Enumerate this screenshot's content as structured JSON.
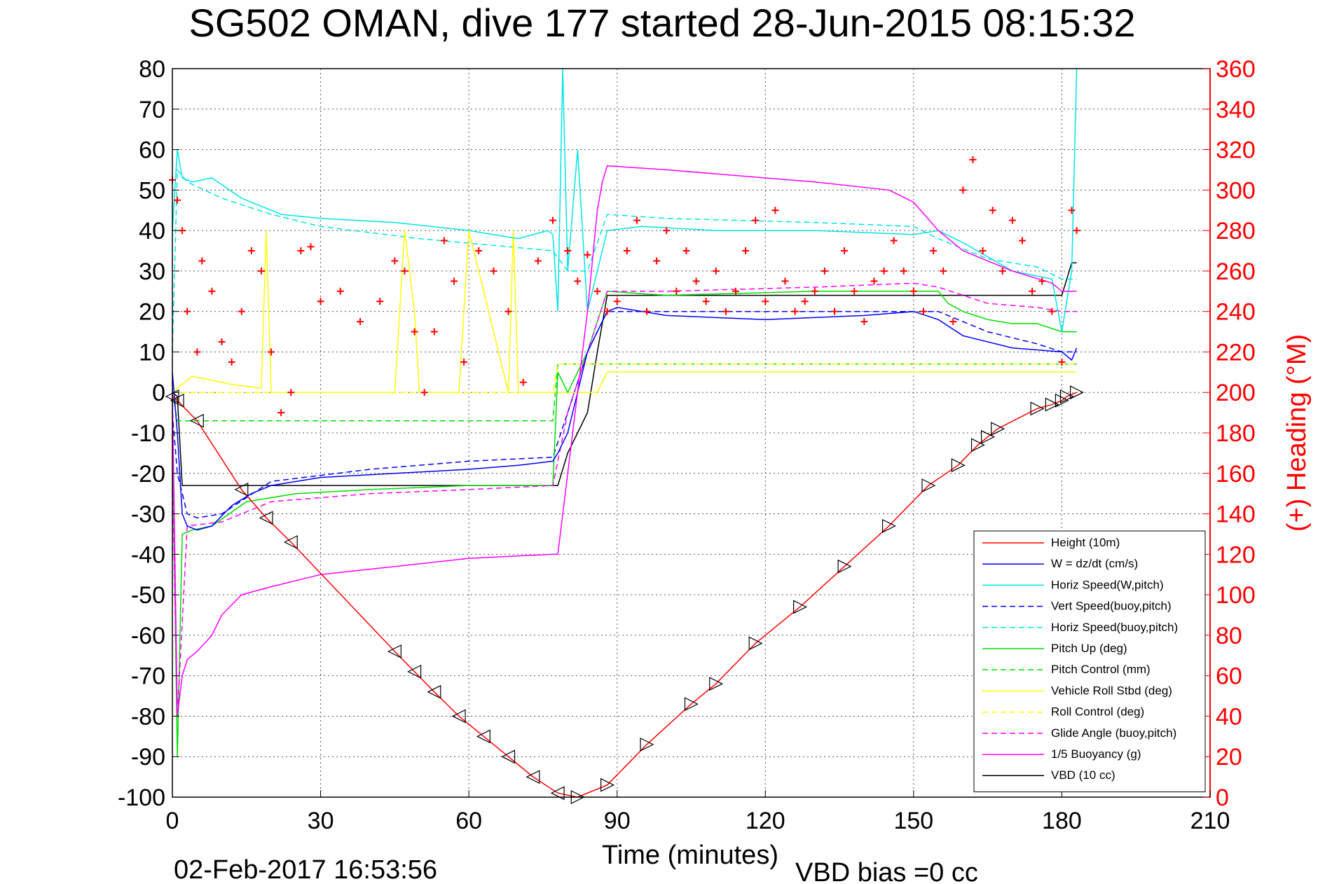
{
  "chart_data": {
    "type": "line",
    "title": "SG502 OMAN, dive 177 started 28-Jun-2015 08:15:32",
    "xlabel": "Time (minutes)",
    "ylabel_right": "(+) Heading (°M)",
    "xlim": [
      0,
      210
    ],
    "ylim": [
      -100,
      80
    ],
    "ylim_right": [
      0,
      360
    ],
    "grid": true,
    "legend_position": "bottom-right",
    "footer_date": "02-Feb-2017 16:53:56",
    "footer_note": "VBD bias =0 cc",
    "xticks": [
      "0",
      "30",
      "60",
      "90",
      "120",
      "150",
      "180",
      "210"
    ],
    "yticks_left": [
      "80",
      "70",
      "60",
      "50",
      "40",
      "30",
      "20",
      "10",
      "0",
      "-10",
      "-20",
      "-30",
      "-40",
      "-50",
      "-60",
      "-70",
      "-80",
      "-90",
      "-100"
    ],
    "yticks_right": [
      "360",
      "340",
      "320",
      "300",
      "280",
      "260",
      "240",
      "220",
      "200",
      "180",
      "160",
      "140",
      "120",
      "100",
      "80",
      "60",
      "40",
      "20",
      "0"
    ],
    "series": [
      {
        "name": "Height (10m)",
        "color": "#ff0000",
        "style": "solid",
        "x": [
          0,
          1,
          5,
          14,
          19,
          24,
          45,
          49,
          53,
          58,
          63,
          68,
          73,
          78,
          82,
          88,
          96,
          105,
          110,
          118,
          127,
          136,
          145,
          153,
          159,
          163,
          165,
          167,
          175,
          178,
          180,
          181,
          183
        ],
        "y": [
          -1,
          -2,
          -7,
          -24,
          -31,
          -37,
          -64,
          -69,
          -74,
          -80,
          -85,
          -90,
          -95,
          -99,
          -100,
          -97,
          -87,
          -77,
          -72,
          -62,
          -53,
          -43,
          -33,
          -23,
          -18,
          -13,
          -11,
          -9,
          -4,
          -3,
          -2,
          -1,
          0
        ]
      },
      {
        "name": "W = dz/dt (cm/s)",
        "color": "#0000ff",
        "style": "solid",
        "x": [
          0,
          1,
          2,
          3,
          5,
          8,
          12,
          16,
          20,
          30,
          45,
          60,
          70,
          77,
          78,
          80,
          84,
          88,
          90,
          100,
          120,
          140,
          150,
          155,
          160,
          170,
          180,
          182,
          183
        ],
        "y": [
          5,
          -10,
          -30,
          -33,
          -34,
          -33,
          -28,
          -25,
          -23,
          -21,
          -20,
          -19,
          -18,
          -17,
          -15,
          -10,
          10,
          20,
          21,
          19,
          18,
          19,
          20,
          18,
          14,
          11,
          10,
          8,
          11
        ]
      },
      {
        "name": "Horiz Speed(W,pitch)",
        "color": "#00e5e5",
        "style": "solid",
        "x": [
          0,
          1,
          2,
          4,
          8,
          14,
          22,
          30,
          45,
          60,
          70,
          76,
          77,
          78,
          79,
          80,
          82,
          84,
          86,
          88,
          95,
          110,
          130,
          150,
          155,
          160,
          170,
          178,
          180,
          182,
          183
        ],
        "y": [
          40,
          60,
          53,
          52,
          53,
          48,
          44,
          43,
          42,
          40,
          38,
          40,
          39,
          20,
          80,
          30,
          60,
          20,
          30,
          40,
          41,
          40,
          40,
          39,
          40,
          37,
          30,
          28,
          15,
          30,
          80
        ]
      },
      {
        "name": "Vert Speed(buoy,pitch)",
        "color": "#0000ff",
        "style": "dashed",
        "x": [
          0,
          1,
          3,
          5,
          10,
          20,
          40,
          60,
          77,
          80,
          84,
          88,
          100,
          130,
          155,
          165,
          175,
          180,
          183
        ],
        "y": [
          -5,
          -20,
          -30,
          -31,
          -30,
          -22,
          -19,
          -17,
          -16,
          -5,
          10,
          20,
          20,
          20,
          20,
          15,
          12,
          10,
          10
        ]
      },
      {
        "name": "Horiz Speed(buoy,pitch)",
        "color": "#00e5e5",
        "style": "dashed",
        "x": [
          0,
          1,
          3,
          10,
          20,
          30,
          50,
          77,
          80,
          84,
          88,
          100,
          130,
          150,
          155,
          165,
          175,
          180,
          183
        ],
        "y": [
          10,
          55,
          52,
          48,
          44,
          41,
          38,
          35,
          30,
          30,
          44,
          43,
          42,
          41,
          38,
          33,
          31,
          28,
          28
        ]
      },
      {
        "name": "Pitch Up (deg)",
        "color": "#00dd00",
        "style": "solid",
        "x": [
          0,
          1,
          2,
          4,
          8,
          15,
          25,
          40,
          60,
          77,
          78,
          80,
          84,
          88,
          100,
          130,
          155,
          157,
          160,
          165,
          170,
          175,
          180,
          183
        ],
        "y": [
          -10,
          -90,
          -35,
          -34,
          -33,
          -27,
          -25,
          -24,
          -23,
          -23,
          5,
          0,
          10,
          25,
          24,
          25,
          25,
          22,
          20,
          18,
          17,
          17,
          15,
          15
        ]
      },
      {
        "name": "Pitch Control (mm)",
        "color": "#00dd00",
        "style": "dashed",
        "x": [
          0,
          1,
          2,
          77,
          78,
          88,
          155,
          178,
          180,
          183
        ],
        "y": [
          0,
          -7,
          -7,
          -7,
          7,
          7,
          7,
          7,
          7,
          7
        ]
      },
      {
        "name": "Vehicle Roll Stbd (deg)",
        "color": "#ffff00",
        "style": "solid",
        "x": [
          0,
          2,
          4,
          8,
          12,
          18,
          19,
          20,
          30,
          45,
          47,
          49,
          50,
          58,
          60,
          68,
          69,
          70,
          76,
          78,
          86,
          88,
          100,
          120,
          140,
          155,
          160,
          175,
          180,
          183
        ],
        "y": [
          0,
          2,
          4,
          3,
          2,
          1,
          40,
          0,
          0,
          0,
          40,
          20,
          0,
          0,
          40,
          0,
          40,
          0,
          0,
          0,
          0,
          5,
          5,
          5,
          5,
          5,
          5,
          5,
          5,
          5
        ]
      },
      {
        "name": "Roll Control (deg)",
        "color": "#ffff00",
        "style": "dashed",
        "x": [
          0,
          1,
          50,
          77,
          78,
          88,
          150,
          155,
          180,
          183
        ],
        "y": [
          0,
          0,
          0,
          0,
          7,
          7,
          7,
          7,
          7,
          7
        ]
      },
      {
        "name": "Glide Angle (buoy,pitch)",
        "color": "#ff00ff",
        "style": "dashed",
        "x": [
          0,
          1,
          3,
          10,
          20,
          40,
          60,
          77,
          80,
          84,
          88,
          100,
          130,
          150,
          155,
          165,
          175,
          180,
          183
        ],
        "y": [
          -20,
          -80,
          -33,
          -32,
          -27,
          -25,
          -24,
          -23,
          -5,
          10,
          25,
          25,
          26,
          27,
          26,
          22,
          21,
          20,
          20
        ]
      },
      {
        "name": "1/5 Buoyancy (g)",
        "color": "#ff00ff",
        "style": "solid",
        "x": [
          0,
          1,
          2,
          3,
          5,
          8,
          10,
          14,
          20,
          30,
          45,
          60,
          77,
          78,
          80,
          84,
          86,
          87,
          88,
          100,
          130,
          145,
          150,
          155,
          160,
          170,
          178,
          180,
          183
        ],
        "y": [
          0,
          -80,
          -70,
          -66,
          -64,
          -60,
          -55,
          -50,
          -48,
          -45,
          -43,
          -41,
          -40,
          -40,
          -20,
          20,
          45,
          52,
          56,
          55,
          52,
          50,
          47,
          40,
          35,
          30,
          27,
          25,
          25
        ]
      },
      {
        "name": "VBD (10 cc)",
        "color": "#000000",
        "style": "solid",
        "x": [
          0,
          1,
          2,
          78,
          80,
          84,
          86,
          88,
          90,
          180,
          181,
          182,
          183
        ],
        "y": [
          0,
          -1,
          -23,
          -23,
          -15,
          -5,
          10,
          24,
          24,
          24,
          28,
          32,
          32
        ]
      },
      {
        "name": "Heading",
        "color": "#ff0000",
        "style": "plus-markers",
        "axis": "right",
        "x": [
          0,
          1,
          2,
          3,
          5,
          6,
          8,
          10,
          12,
          14,
          16,
          18,
          20,
          22,
          24,
          26,
          28,
          30,
          34,
          38,
          42,
          45,
          47,
          49,
          51,
          53,
          55,
          57,
          59,
          62,
          65,
          68,
          71,
          74,
          77,
          80,
          82,
          84,
          86,
          88,
          90,
          92,
          94,
          96,
          98,
          100,
          102,
          104,
          106,
          108,
          110,
          112,
          114,
          116,
          118,
          120,
          122,
          124,
          126,
          128,
          130,
          132,
          134,
          136,
          138,
          140,
          142,
          144,
          146,
          148,
          150,
          152,
          154,
          156,
          158,
          160,
          162,
          164,
          166,
          168,
          170,
          172,
          174,
          176,
          178,
          180,
          182,
          183
        ],
        "y": [
          305,
          295,
          280,
          240,
          220,
          265,
          250,
          225,
          215,
          240,
          270,
          260,
          220,
          190,
          200,
          270,
          272,
          245,
          250,
          235,
          245,
          265,
          260,
          230,
          200,
          230,
          275,
          255,
          215,
          270,
          260,
          240,
          205,
          265,
          285,
          270,
          255,
          268,
          250,
          240,
          245,
          270,
          285,
          240,
          265,
          280,
          250,
          270,
          255,
          245,
          260,
          240,
          250,
          270,
          285,
          245,
          290,
          255,
          240,
          245,
          250,
          260,
          240,
          270,
          250,
          235,
          255,
          260,
          275,
          260,
          250,
          240,
          270,
          260,
          235,
          300,
          315,
          270,
          290,
          260,
          285,
          275,
          250,
          255,
          240,
          215,
          290,
          280
        ]
      }
    ]
  }
}
